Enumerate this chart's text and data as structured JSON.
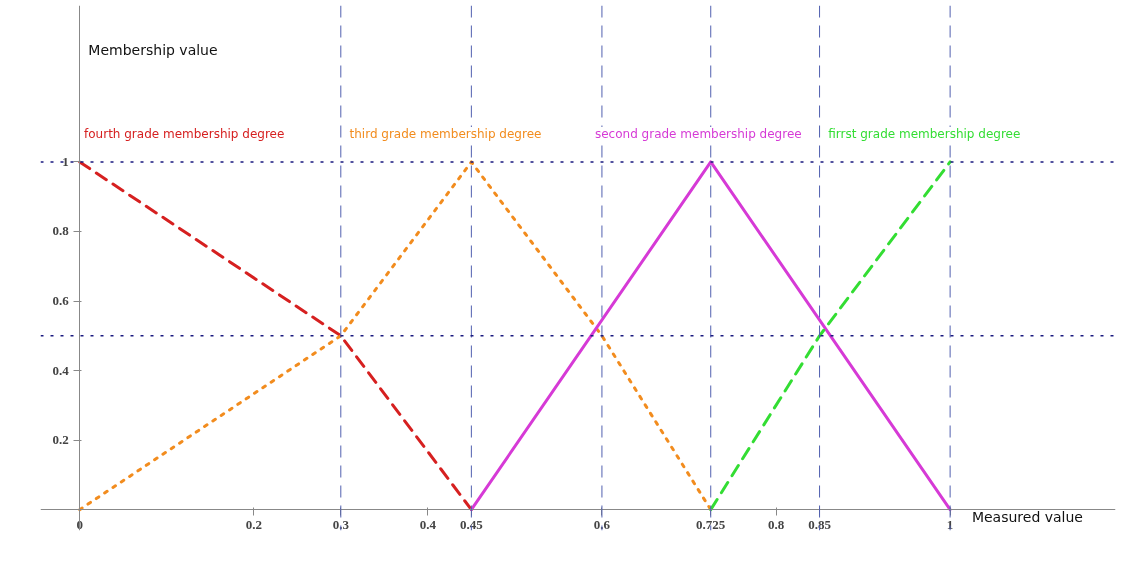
{
  "chart_data": {
    "type": "line",
    "xlabel": "Measured value",
    "ylabel": "Membership value",
    "xlim": [
      -0.045,
      1.19
    ],
    "ylim": [
      -0.06,
      1.45
    ],
    "xticks": [
      0,
      0.2,
      0.3,
      0.4,
      0.45,
      0.6,
      0.725,
      0.8,
      0.85,
      1
    ],
    "yticks": [
      0.2,
      0.4,
      0.6,
      0.8,
      1
    ],
    "series": [
      {
        "name": "fourth grade membership degree",
        "color": "#d62020",
        "line_style": "dashed",
        "x": [
          0,
          0.3,
          0.45
        ],
        "values": [
          1,
          0.5,
          0
        ]
      },
      {
        "name": "third grade membership degree",
        "color": "#f28c1e",
        "line_style": "dotted",
        "x": [
          0,
          0.3,
          0.45,
          0.6,
          0.725
        ],
        "values": [
          0,
          0.5,
          1,
          0.5,
          0
        ]
      },
      {
        "name": "second grade membership degree",
        "color": "#d63ad6",
        "line_style": "solid",
        "x": [
          0.45,
          0.725,
          1
        ],
        "values": [
          0,
          1,
          0
        ]
      },
      {
        "name": "firrst grade membership degree",
        "color": "#33dd33",
        "line_style": "dashed",
        "x": [
          0.725,
          0.85,
          1
        ],
        "values": [
          0,
          0.5,
          1
        ]
      }
    ],
    "ref_lines": [
      {
        "axis": "x",
        "value": 0.3,
        "color": "#5060b0",
        "line_style": "dashed"
      },
      {
        "axis": "x",
        "value": 0.45,
        "color": "#5060b0",
        "line_style": "dashed"
      },
      {
        "axis": "x",
        "value": 0.6,
        "color": "#5060b0",
        "line_style": "dashed"
      },
      {
        "axis": "x",
        "value": 0.725,
        "color": "#5060b0",
        "line_style": "dashed"
      },
      {
        "axis": "x",
        "value": 0.85,
        "color": "#5060b0",
        "line_style": "dashed"
      },
      {
        "axis": "x",
        "value": 1,
        "color": "#5060b0",
        "line_style": "dashed"
      },
      {
        "axis": "y",
        "value": 0.5,
        "color": "#1a1a80",
        "line_style": "dotted"
      },
      {
        "axis": "y",
        "value": 1,
        "color": "#1a1a80",
        "line_style": "dotted"
      }
    ],
    "grid": false
  }
}
